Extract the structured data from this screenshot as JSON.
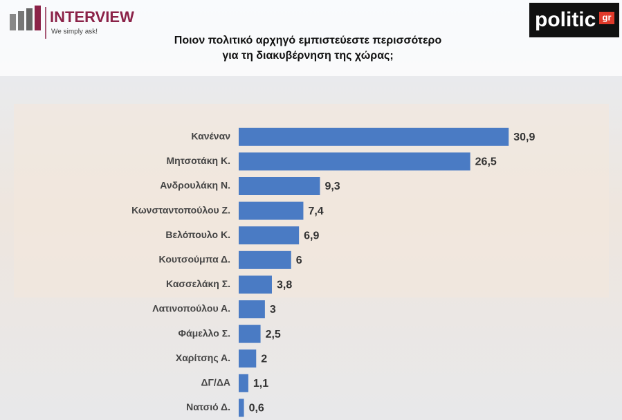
{
  "header": {
    "brand": "INTERVIEW",
    "tagline": "We simply ask!",
    "partner": "politic",
    "partner_suffix": "gr"
  },
  "chart_data": {
    "type": "hbar",
    "title": [
      "Ποιον πολιτικό αρχηγό εμπιστεύεστε περισσότερο",
      "για τη διακυβέρνηση της χώρας;"
    ],
    "categories": [
      "Κανέναν",
      "Μητσοτάκη Κ.",
      "Ανδρουλάκη Ν.",
      "Κωνσταντοπούλου Ζ.",
      "Βελόπουλο Κ.",
      "Κουτσούμπα Δ.",
      "Κασσελάκη Σ.",
      "Λατινοπούλου Α.",
      "Φάμελλο Σ.",
      "Χαρίτσης Α.",
      "ΔΓ/ΔΑ",
      "Νατσιό Δ."
    ],
    "values": [
      30.9,
      26.5,
      9.3,
      7.4,
      6.9,
      6,
      3.8,
      3,
      2.5,
      2,
      1.1,
      0.6
    ],
    "value_labels": [
      "30,9",
      "26,5",
      "9,3",
      "7,4",
      "6,9",
      "6",
      "3,8",
      "3",
      "2,5",
      "2",
      "1,1",
      "0,6"
    ],
    "color": "#4a7bc4",
    "xlim": [
      0,
      35
    ]
  }
}
